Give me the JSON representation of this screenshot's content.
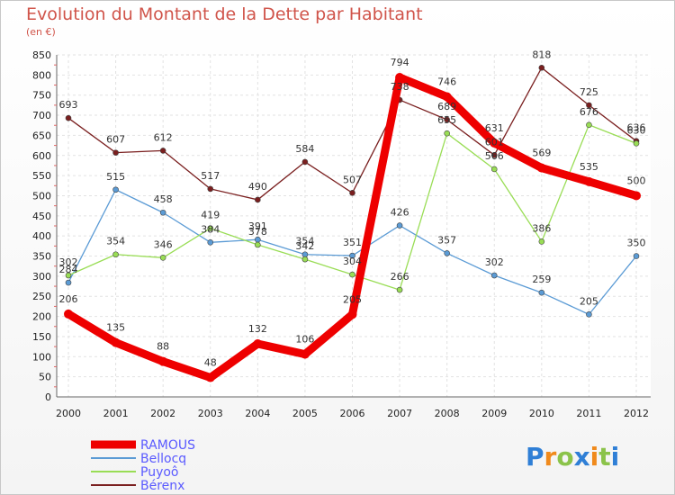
{
  "chart_data": {
    "type": "line",
    "title": "Evolution du Montant de la Dette par Habitant",
    "subtitle": "(en €)",
    "x": [
      "2000",
      "2001",
      "2002",
      "2003",
      "2004",
      "2005",
      "2006",
      "2007",
      "2008",
      "2009",
      "2010",
      "2011",
      "2012"
    ],
    "ylim": [
      0,
      850
    ],
    "yticks": [
      0,
      50,
      100,
      150,
      200,
      250,
      300,
      350,
      400,
      450,
      500,
      550,
      600,
      650,
      700,
      750,
      800,
      850
    ],
    "grid": true,
    "legend_position": "bottom-left",
    "series": [
      {
        "name": "RAMOUS",
        "color": "#ee0000",
        "values": [
          206,
          135,
          88,
          48,
          132,
          106,
          205,
          794,
          746,
          631,
          569,
          535,
          500
        ]
      },
      {
        "name": "Bellocq",
        "color": "#5b9bd5",
        "values": [
          284,
          515,
          458,
          384,
          391,
          354,
          351,
          426,
          357,
          302,
          259,
          205,
          350
        ]
      },
      {
        "name": "Puyoô",
        "color": "#99dd55",
        "values": [
          302,
          354,
          346,
          419,
          378,
          342,
          304,
          266,
          655,
          566,
          386,
          676,
          630
        ]
      },
      {
        "name": "Bérenx",
        "color": "#7a1f1f",
        "values": [
          693,
          607,
          612,
          517,
          490,
          584,
          507,
          738,
          689,
          601,
          818,
          725,
          636
        ]
      }
    ]
  },
  "logo": {
    "text": "Proxiti",
    "letters": [
      "P",
      "r",
      "o",
      "x",
      "i",
      "t",
      "i"
    ],
    "colors": [
      "#2f7fd6",
      "#f08a1c",
      "#8bc34a",
      "#2f7fd6",
      "#f08a1c",
      "#8bc34a",
      "#2f7fd6"
    ]
  }
}
